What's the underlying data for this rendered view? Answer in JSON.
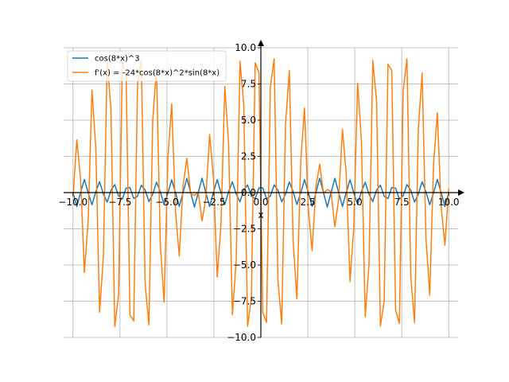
{
  "chart_data": {
    "type": "line",
    "xlabel": "x",
    "ylabel": "",
    "xlim": [
      -10.5,
      10.5
    ],
    "ylim": [
      -10.0,
      10.0
    ],
    "x_ticks": [
      -10.0,
      -7.5,
      -5.0,
      -2.5,
      0.0,
      2.5,
      5.0,
      7.5,
      10.0
    ],
    "y_ticks": [
      -10.0,
      -7.5,
      -5.0,
      -2.5,
      0.0,
      2.5,
      5.0,
      7.5,
      10.0
    ],
    "x_tick_labels": [
      "−10.0",
      "−7.5",
      "−5.0",
      "−2.5",
      "0.0",
      "2.5",
      "5.0",
      "7.5",
      "10.0"
    ],
    "y_tick_labels": [
      "−10.0",
      "−7.5",
      "−5.0",
      "−2.5",
      "0.0",
      "2.5",
      "5.0",
      "7.5",
      "10.0"
    ],
    "grid": true,
    "legend_position": "top-left",
    "sampling": {
      "x_start": -10,
      "x_end": 10,
      "samples": 100
    },
    "series": [
      {
        "name": "cos(8*x)^3",
        "color": "#1f77b4",
        "expression": "cos(8x)^3"
      },
      {
        "name": "f'(x) = -24*cos(8*x)^2*sin(8*x)",
        "color": "#ff7f0e",
        "expression": "-24*cos(8x)^2*sin(8x)"
      }
    ]
  }
}
